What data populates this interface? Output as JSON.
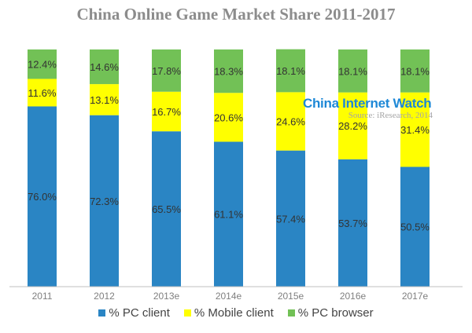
{
  "chart_data": {
    "type": "bar",
    "stacked": true,
    "title": "China Online Game Market Share 2011-2017",
    "categories": [
      "2011",
      "2012",
      "2013e",
      "2014e",
      "2015e",
      "2016e",
      "2017e"
    ],
    "series": [
      {
        "name": "% PC client",
        "color": "#2a85c4",
        "values": [
          76.0,
          72.3,
          65.5,
          61.1,
          57.4,
          53.7,
          50.5
        ]
      },
      {
        "name": "% Mobile client",
        "color": "#ffff00",
        "values": [
          11.6,
          13.1,
          16.7,
          20.6,
          24.6,
          28.2,
          31.4
        ]
      },
      {
        "name": "% PC browser",
        "color": "#72c156",
        "values": [
          12.4,
          14.6,
          17.8,
          18.3,
          18.1,
          18.1,
          18.1
        ]
      }
    ],
    "ylim": [
      0,
      100
    ],
    "value_suffix": "%",
    "grid": false,
    "legend_position": "bottom"
  },
  "watermark": {
    "brand": "China Internet Watch",
    "source": "Source: iResearch, 2014"
  }
}
